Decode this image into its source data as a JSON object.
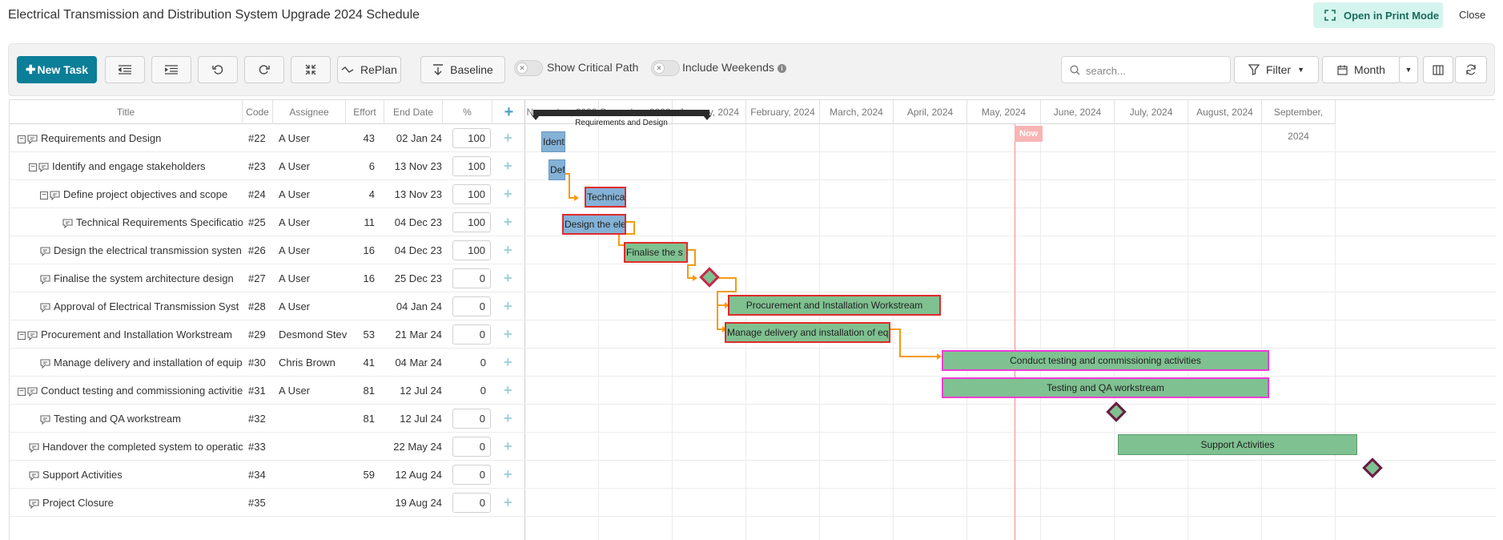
{
  "page": {
    "title": "Electrical Transmission and Distribution System Upgrade 2024 Schedule",
    "print_mode_label": "Open in Print Mode",
    "close_label": "Close"
  },
  "toolbar": {
    "new_task_label": "New Task",
    "replan_label": "RePlan",
    "baseline_label": "Baseline",
    "critical_path_label": "Show Critical Path",
    "include_weekends_label": "Include Weekends",
    "search_placeholder": "search...",
    "filter_label": "Filter",
    "view_label": "Month"
  },
  "columns": {
    "title": "Title",
    "code": "Code",
    "assignee": "Assignee",
    "effort": "Effort",
    "end_date": "End Date",
    "percent": "%"
  },
  "timeline": {
    "months": [
      "November, 2023",
      "December, 2023",
      "January, 2024",
      "February, 2024",
      "March, 2024",
      "April, 2024",
      "May, 2024",
      "June, 2024",
      "July, 2024",
      "August, 2024",
      "September, 2024"
    ],
    "now_label": "Now"
  },
  "tasks": [
    {
      "title": "Requirements and Design",
      "code": "#22",
      "assignee": "A User",
      "effort": "43",
      "end_date": "02 Jan 24",
      "percent": "100",
      "level": 0,
      "collapsible": true,
      "editable_pct": true
    },
    {
      "title": "Identify and engage stakeholders",
      "code": "#23",
      "assignee": "A User",
      "effort": "6",
      "end_date": "13 Nov 23",
      "percent": "100",
      "level": 1,
      "collapsible": true,
      "editable_pct": true
    },
    {
      "title": "Define project objectives and scope",
      "code": "#24",
      "assignee": "A User",
      "effort": "4",
      "end_date": "13 Nov 23",
      "percent": "100",
      "level": 2,
      "collapsible": true,
      "editable_pct": true
    },
    {
      "title": "Technical Requirements Specificatio",
      "code": "#25",
      "assignee": "A User",
      "effort": "11",
      "end_date": "04 Dec 23",
      "percent": "100",
      "level": 3,
      "collapsible": false,
      "editable_pct": true
    },
    {
      "title": "Design the electrical transmission systen",
      "code": "#26",
      "assignee": "A User",
      "effort": "16",
      "end_date": "04 Dec 23",
      "percent": "100",
      "level": 1,
      "collapsible": false,
      "editable_pct": true
    },
    {
      "title": "Finalise the system architecture design",
      "code": "#27",
      "assignee": "A User",
      "effort": "16",
      "end_date": "25 Dec 23",
      "percent": "0",
      "level": 1,
      "collapsible": false,
      "editable_pct": true
    },
    {
      "title": "Approval of Electrical Transmission Syst",
      "code": "#28",
      "assignee": "A User",
      "effort": "",
      "end_date": "04 Jan 24",
      "percent": "0",
      "level": 1,
      "collapsible": false,
      "editable_pct": true
    },
    {
      "title": "Procurement and Installation Workstream",
      "code": "#29",
      "assignee": "Desmond Stev",
      "effort": "53",
      "end_date": "21 Mar 24",
      "percent": "0",
      "level": 0,
      "collapsible": true,
      "editable_pct": true
    },
    {
      "title": "Manage delivery and installation of equip",
      "code": "#30",
      "assignee": "Chris Brown",
      "effort": "41",
      "end_date": "04 Mar 24",
      "percent": "0",
      "level": 1,
      "collapsible": false,
      "editable_pct": false
    },
    {
      "title": "Conduct testing and commissioning activitie",
      "code": "#31",
      "assignee": "A User",
      "effort": "81",
      "end_date": "12 Jul 24",
      "percent": "0",
      "level": 0,
      "collapsible": true,
      "editable_pct": false
    },
    {
      "title": "Testing and QA workstream",
      "code": "#32",
      "assignee": "",
      "effort": "81",
      "end_date": "12 Jul 24",
      "percent": "0",
      "level": 1,
      "collapsible": false,
      "editable_pct": true
    },
    {
      "title": "Handover the completed system to operatic",
      "code": "#33",
      "assignee": "",
      "effort": "",
      "end_date": "22 May 24",
      "percent": "0",
      "level": 0,
      "collapsible": false,
      "editable_pct": true
    },
    {
      "title": "Support Activities",
      "code": "#34",
      "assignee": "",
      "effort": "59",
      "end_date": "12 Aug 24",
      "percent": "0",
      "level": 0,
      "collapsible": false,
      "editable_pct": true
    },
    {
      "title": "Project Closure",
      "code": "#35",
      "assignee": "",
      "effort": "",
      "end_date": "19 Aug 24",
      "percent": "0",
      "level": 0,
      "collapsible": false,
      "editable_pct": true
    }
  ],
  "bars": {
    "b22": "Requirements and Design",
    "b23": "Ident",
    "b24": "Def",
    "b25": "Technica",
    "b26": "Design the ele",
    "b27": "Finalise the s",
    "b29": "Procurement and Installation Workstream",
    "b30": "Manage delivery and installation of eq",
    "b31": "Conduct testing and commissioning activities",
    "b32": "Testing and QA workstream",
    "b34": "Support Activities"
  },
  "colors": {
    "accent": "#0b7e98",
    "bar_blue": "#84b1d6",
    "bar_green": "#7fc190",
    "critical": "#e02b2b",
    "dependency": "#f39c12",
    "now": "#f08a8a"
  }
}
